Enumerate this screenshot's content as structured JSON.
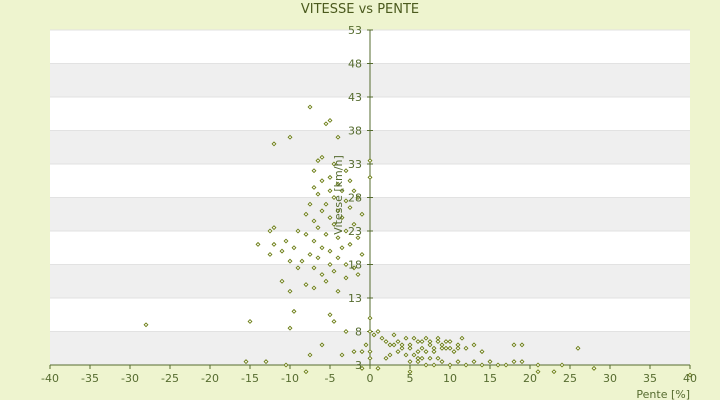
{
  "chart_data": {
    "type": "scatter",
    "title": "VITESSE vs PENTE",
    "xlabel": "Pente [%]",
    "ylabel": "Vitesse [km/h]",
    "xlim": [
      -40,
      40
    ],
    "ylim": [
      3,
      53
    ],
    "xticks": [
      -40,
      -35,
      -30,
      -25,
      -20,
      -15,
      -10,
      -5,
      0,
      5,
      10,
      15,
      20,
      25,
      30,
      35,
      40
    ],
    "yticks": [
      3,
      8,
      13,
      18,
      23,
      28,
      33,
      38,
      43,
      48,
      53
    ],
    "grid": "horizontal alternating bands",
    "colors": {
      "background": "#eef4cf",
      "plot": "#ffffff",
      "band": "#efefef",
      "point": "#6b7d14",
      "axis": "#556b2f"
    },
    "series": [
      {
        "points": [
          [
            -7.5,
            41.5
          ],
          [
            -5,
            39.5
          ],
          [
            -5.5,
            39
          ],
          [
            -4,
            37
          ],
          [
            -10,
            37
          ],
          [
            -12,
            36
          ],
          [
            -6,
            34
          ],
          [
            -6.5,
            33.5
          ],
          [
            -4.5,
            33
          ],
          [
            -7,
            32
          ],
          [
            -3,
            32
          ],
          [
            -5,
            31
          ],
          [
            -6,
            30.5
          ],
          [
            -2.5,
            30.5
          ],
          [
            -4,
            30
          ],
          [
            -7,
            29.5
          ],
          [
            -5,
            29
          ],
          [
            -3.5,
            29
          ],
          [
            -2,
            29
          ],
          [
            -6.5,
            28.5
          ],
          [
            -4.5,
            28
          ],
          [
            -1.5,
            28
          ],
          [
            -3,
            27.5
          ],
          [
            -5.5,
            27
          ],
          [
            -7.5,
            27
          ],
          [
            -2.5,
            26.5
          ],
          [
            -4,
            26
          ],
          [
            -6,
            26
          ],
          [
            -8,
            25.5
          ],
          [
            -1,
            25.5
          ],
          [
            -3.5,
            25
          ],
          [
            -5,
            25
          ],
          [
            -7,
            24.5
          ],
          [
            -2,
            24
          ],
          [
            -4.5,
            24
          ],
          [
            -6.5,
            23.5
          ],
          [
            -12,
            23.5
          ],
          [
            -12.5,
            23
          ],
          [
            -9,
            23
          ],
          [
            -3,
            23
          ],
          [
            -5.5,
            22.5
          ],
          [
            -8,
            22.5
          ],
          [
            -1.5,
            22
          ],
          [
            -4,
            22
          ],
          [
            -7,
            21.5
          ],
          [
            -10.5,
            21.5
          ],
          [
            -12,
            21
          ],
          [
            -14,
            21
          ],
          [
            -2.5,
            21
          ],
          [
            -6,
            20.5
          ],
          [
            -3.5,
            20.5
          ],
          [
            -9.5,
            20.5
          ],
          [
            -5,
            20
          ],
          [
            -11,
            20
          ],
          [
            -12.5,
            19.5
          ],
          [
            -7.5,
            19.5
          ],
          [
            -1,
            19.5
          ],
          [
            -4,
            19
          ],
          [
            -6.5,
            19
          ],
          [
            -8.5,
            18.5
          ],
          [
            -10,
            18.5
          ],
          [
            -3,
            18
          ],
          [
            -5,
            18
          ],
          [
            -2,
            17.5
          ],
          [
            -7,
            17.5
          ],
          [
            -9,
            17.5
          ],
          [
            -4.5,
            17
          ],
          [
            -1.5,
            16.5
          ],
          [
            -6,
            16.5
          ],
          [
            -3,
            16
          ],
          [
            -11,
            15.5
          ],
          [
            -5.5,
            15.5
          ],
          [
            -8,
            15
          ],
          [
            -7,
            14.5
          ],
          [
            -10,
            14
          ],
          [
            -4,
            14
          ],
          [
            -9.5,
            11
          ],
          [
            -5,
            10.5
          ],
          [
            -4.5,
            9.5
          ],
          [
            -28,
            9
          ],
          [
            -15,
            9.5
          ],
          [
            -10,
            8.5
          ],
          [
            -3,
            8
          ],
          [
            -6,
            6
          ],
          [
            -2,
            5
          ],
          [
            -7.5,
            4.5
          ],
          [
            -3.5,
            4.5
          ],
          [
            -15.5,
            3.5
          ],
          [
            -13,
            3.5
          ],
          [
            -10.5,
            3
          ],
          [
            -8,
            2
          ],
          [
            0,
            8
          ],
          [
            0.5,
            7.5
          ],
          [
            1,
            8
          ],
          [
            1.5,
            7
          ],
          [
            2,
            6.5
          ],
          [
            2.5,
            6
          ],
          [
            3,
            7.5
          ],
          [
            3.5,
            6.5
          ],
          [
            4,
            5.5
          ],
          [
            4.5,
            7
          ],
          [
            5,
            6
          ],
          [
            5.5,
            7
          ],
          [
            6,
            6.5
          ],
          [
            6.5,
            5.5
          ],
          [
            7,
            7
          ],
          [
            7.5,
            6
          ],
          [
            8,
            5.5
          ],
          [
            8.5,
            7
          ],
          [
            9,
            6
          ],
          [
            9.5,
            5.5
          ],
          [
            10,
            6.5
          ],
          [
            10.5,
            5
          ],
          [
            11,
            6
          ],
          [
            11.5,
            7
          ],
          [
            12,
            5.5
          ],
          [
            13,
            6
          ],
          [
            14,
            5
          ],
          [
            4,
            6
          ],
          [
            5,
            5.5
          ],
          [
            6,
            5
          ],
          [
            7,
            5
          ],
          [
            8,
            5
          ],
          [
            9,
            5.5
          ],
          [
            10,
            5.5
          ],
          [
            11,
            5.5
          ],
          [
            6.5,
            6.5
          ],
          [
            7.5,
            6.5
          ],
          [
            8.5,
            6.5
          ],
          [
            9.5,
            6.5
          ],
          [
            3,
            6
          ],
          [
            4.5,
            4.5
          ],
          [
            5.5,
            4.5
          ],
          [
            6.5,
            4
          ],
          [
            7.5,
            4
          ],
          [
            8.5,
            4
          ],
          [
            2.5,
            4.5
          ],
          [
            3.5,
            5
          ],
          [
            5,
            3.5
          ],
          [
            6,
            3.5
          ],
          [
            7,
            3
          ],
          [
            8,
            3
          ],
          [
            9,
            3.5
          ],
          [
            10,
            3
          ],
          [
            11,
            3.5
          ],
          [
            12,
            3
          ],
          [
            13,
            3.5
          ],
          [
            14,
            3
          ],
          [
            15,
            3.5
          ],
          [
            16,
            3
          ],
          [
            17,
            3
          ],
          [
            18,
            3.5
          ],
          [
            19,
            3.5
          ],
          [
            18,
            6
          ],
          [
            19,
            6
          ],
          [
            26,
            5.5
          ],
          [
            21,
            3
          ],
          [
            23,
            2
          ],
          [
            24,
            3
          ],
          [
            28,
            2.5
          ],
          [
            21,
            2
          ],
          [
            40,
            1.5
          ],
          [
            0,
            33.5
          ],
          [
            0,
            31
          ],
          [
            0,
            10
          ],
          [
            0,
            5
          ],
          [
            0,
            4
          ],
          [
            1,
            2.5
          ],
          [
            2,
            4
          ],
          [
            5,
            2
          ],
          [
            6,
            4
          ],
          [
            -1,
            2.5
          ],
          [
            -0.5,
            6
          ],
          [
            -1,
            5
          ]
        ]
      }
    ]
  }
}
